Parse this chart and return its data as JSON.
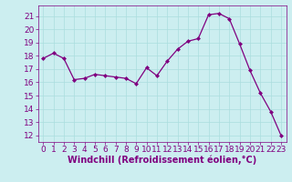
{
  "x": [
    0,
    1,
    2,
    3,
    4,
    5,
    6,
    7,
    8,
    9,
    10,
    11,
    12,
    13,
    14,
    15,
    16,
    17,
    18,
    19,
    20,
    21,
    22,
    23
  ],
  "y": [
    17.8,
    18.2,
    17.8,
    16.2,
    16.3,
    16.6,
    16.5,
    16.4,
    16.3,
    15.9,
    17.1,
    16.5,
    17.6,
    18.5,
    19.1,
    19.3,
    21.1,
    21.2,
    20.8,
    18.9,
    16.9,
    15.2,
    13.8,
    12.0
  ],
  "line_color": "#800080",
  "marker": "D",
  "marker_size": 2.0,
  "bg_color": "#cceef0",
  "grid_color": "#aaddde",
  "xlabel": "Windchill (Refroidissement éolien,°C)",
  "xlim": [
    -0.5,
    23.5
  ],
  "ylim": [
    11.5,
    21.8
  ],
  "yticks": [
    12,
    13,
    14,
    15,
    16,
    17,
    18,
    19,
    20,
    21
  ],
  "xticks": [
    0,
    1,
    2,
    3,
    4,
    5,
    6,
    7,
    8,
    9,
    10,
    11,
    12,
    13,
    14,
    15,
    16,
    17,
    18,
    19,
    20,
    21,
    22,
    23
  ],
  "tick_color": "#800080",
  "label_color": "#800080",
  "axis_color": "#800080",
  "font_size": 6.5,
  "xlabel_fontsize": 7.0,
  "linewidth": 0.9
}
